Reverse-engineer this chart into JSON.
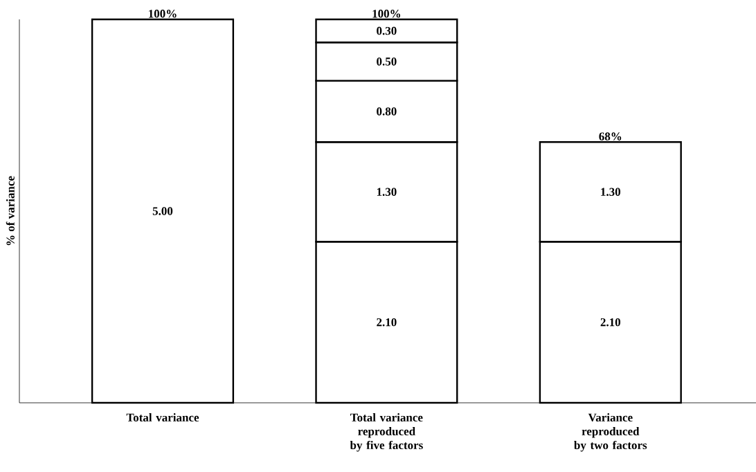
{
  "chart_data": {
    "type": "bar",
    "stacked": true,
    "ylabel": "% of variance",
    "categories": [
      "Total variance",
      "Total variance reproduced by five factors",
      "Variance reproduced by two factors"
    ],
    "series": [
      {
        "color": "#ffffff",
        "values": [
          5.0,
          2.1,
          2.1
        ],
        "value_labels": [
          "5.00",
          "2.10",
          "2.10"
        ]
      },
      {
        "color": "#ffffff",
        "values": [
          null,
          1.3,
          1.3
        ],
        "value_labels": [
          null,
          "1.30",
          "1.30"
        ]
      },
      {
        "color": "#ffffff",
        "values": [
          null,
          0.8,
          null
        ],
        "value_labels": [
          null,
          "0.80",
          null
        ]
      },
      {
        "color": "#ffffff",
        "values": [
          null,
          0.5,
          null
        ],
        "value_labels": [
          null,
          "0.50",
          null
        ]
      },
      {
        "color": "#ffffff",
        "values": [
          null,
          0.3,
          null
        ],
        "value_labels": [
          null,
          "0.30",
          null
        ]
      }
    ],
    "annotations": [
      {
        "text": "100%",
        "x": "Total variance",
        "y": 5.0
      },
      {
        "text": "100%",
        "x": "Total variance reproduced by five factors",
        "y": 5.0
      },
      {
        "text": "68%",
        "x": "Variance reproduced by two factors",
        "y": 3.4
      }
    ],
    "ylim": [
      0,
      5.0
    ],
    "tick_labels": "x"
  }
}
